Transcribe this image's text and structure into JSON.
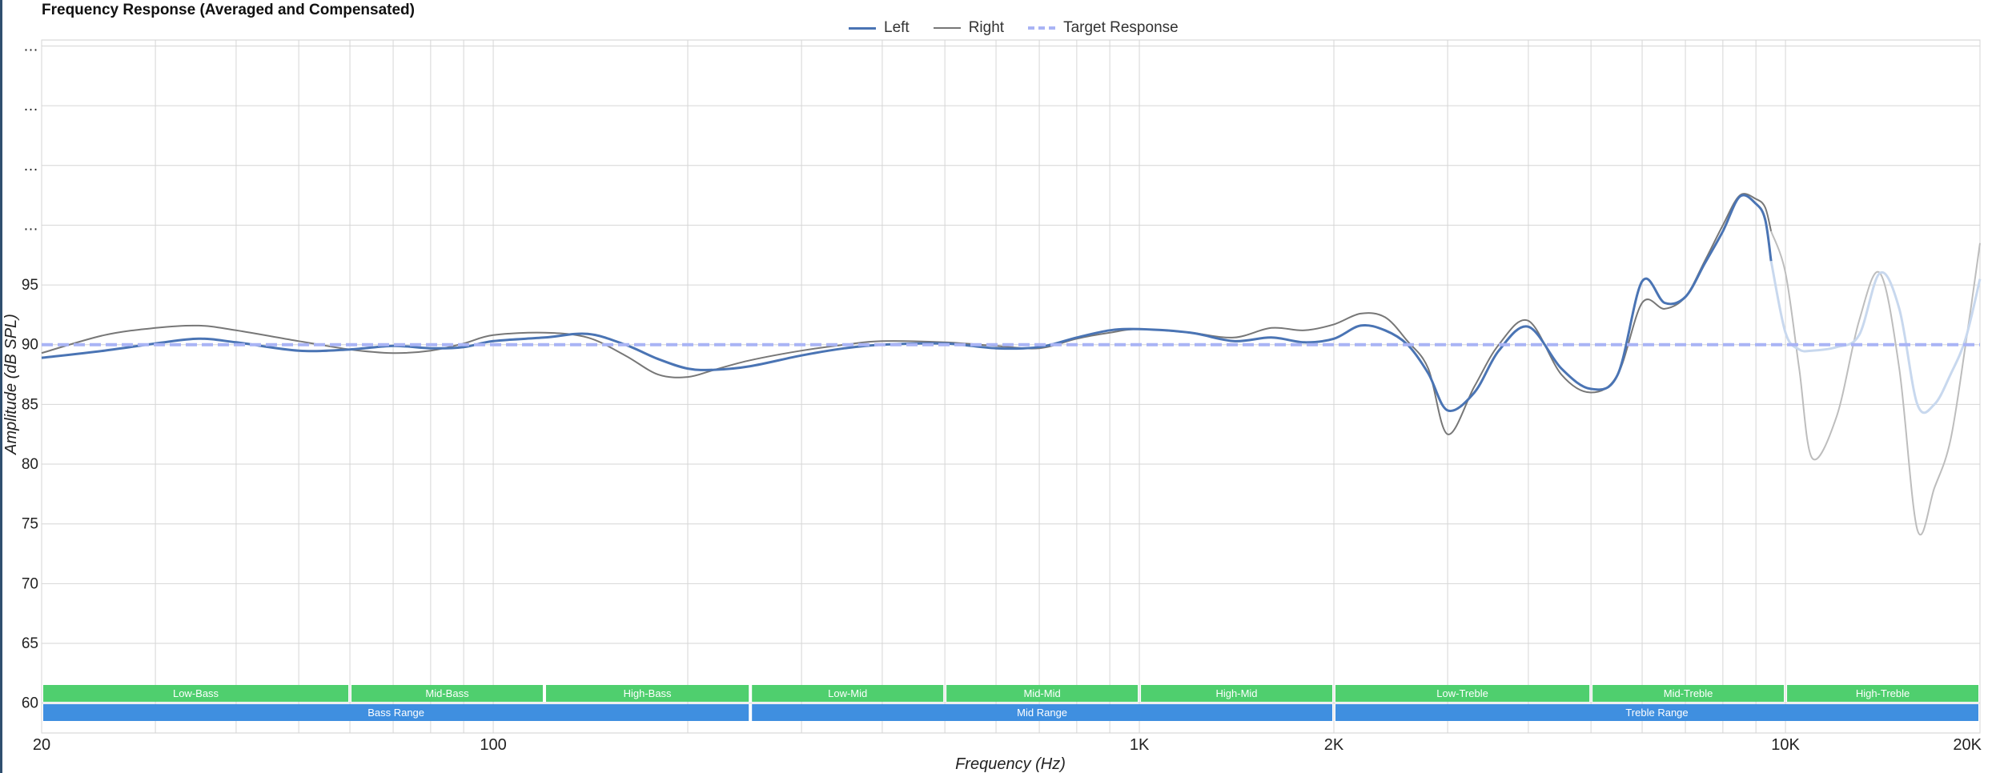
{
  "chart_data": {
    "type": "line",
    "title": "Frequency Response (Averaged and Compensated)",
    "xlabel": "Frequency (Hz)",
    "ylabel": "Amplitude (dB SPL)",
    "x_scale": "log",
    "xlim": [
      20,
      20000
    ],
    "ylim": [
      57.5,
      115.5
    ],
    "x_ticks": [
      {
        "value": 20,
        "label": "20"
      },
      {
        "value": 100,
        "label": "100"
      },
      {
        "value": 1000,
        "label": "1K"
      },
      {
        "value": 2000,
        "label": "2K"
      },
      {
        "value": 10000,
        "label": "10K"
      },
      {
        "value": 20000,
        "label": "20K"
      }
    ],
    "y_ticks": [
      {
        "value": 60,
        "label": "60"
      },
      {
        "value": 65,
        "label": "65"
      },
      {
        "value": 70,
        "label": "70"
      },
      {
        "value": 75,
        "label": "75"
      },
      {
        "value": 80,
        "label": "80"
      },
      {
        "value": 85,
        "label": "85"
      },
      {
        "value": 90,
        "label": "90"
      },
      {
        "value": 95,
        "label": "95"
      },
      {
        "value": 100,
        "label": "…"
      },
      {
        "value": 105,
        "label": "…"
      },
      {
        "value": 110,
        "label": "…"
      },
      {
        "value": 115,
        "label": "…"
      }
    ],
    "grid": true,
    "legend": {
      "position": "top-center",
      "items": [
        "Left",
        "Right",
        "Target Response"
      ]
    },
    "series": [
      {
        "name": "Left",
        "color": "#4a74b4",
        "style": "solid",
        "faded_after": 9500,
        "faded_color": "#c8d8ee",
        "x": [
          20,
          25,
          30,
          35,
          40,
          50,
          60,
          70,
          80,
          90,
          100,
          120,
          140,
          160,
          180,
          200,
          220,
          250,
          300,
          350,
          400,
          500,
          600,
          700,
          800,
          900,
          1000,
          1200,
          1400,
          1600,
          1800,
          2000,
          2200,
          2400,
          2600,
          2800,
          3000,
          3300,
          3600,
          4000,
          4500,
          5000,
          5500,
          6000,
          6500,
          7000,
          7500,
          8000,
          8500,
          9000,
          9300,
          9500,
          10000,
          10500,
          11000,
          12000,
          13000,
          14000,
          15000,
          16000,
          17000,
          18000,
          19000,
          20000
        ],
        "y": [
          88.9,
          89.5,
          90.1,
          90.5,
          90.2,
          89.5,
          89.6,
          89.9,
          89.7,
          89.8,
          90.3,
          90.6,
          90.9,
          90.0,
          88.8,
          88.0,
          87.9,
          88.2,
          89.1,
          89.7,
          90.0,
          90.1,
          89.7,
          89.8,
          90.6,
          91.2,
          91.3,
          91.0,
          90.3,
          90.6,
          90.2,
          90.5,
          91.6,
          91.2,
          90.0,
          87.6,
          84.5,
          86.0,
          89.5,
          91.5,
          88.0,
          86.3,
          87.5,
          95.3,
          93.5,
          94.0,
          96.8,
          99.5,
          102.4,
          101.8,
          100.5,
          97.0,
          91.0,
          89.6,
          89.5,
          89.8,
          90.8,
          96.0,
          93.0,
          85.0,
          85.0,
          87.5,
          90.5,
          95.5
        ]
      },
      {
        "name": "Right",
        "color": "#777777",
        "style": "solid",
        "faded_after": 9500,
        "faded_color": "#bdbdbd",
        "x": [
          20,
          25,
          30,
          35,
          40,
          50,
          60,
          70,
          80,
          90,
          100,
          120,
          140,
          160,
          180,
          200,
          220,
          250,
          300,
          350,
          400,
          500,
          600,
          700,
          800,
          900,
          1000,
          1200,
          1400,
          1600,
          1800,
          2000,
          2200,
          2400,
          2600,
          2800,
          3000,
          3300,
          3600,
          4000,
          4500,
          5000,
          5500,
          6000,
          6500,
          7000,
          7500,
          8000,
          8500,
          9000,
          9300,
          9500,
          10000,
          10500,
          11000,
          12000,
          13000,
          14000,
          15000,
          16000,
          17000,
          18000,
          19000,
          20000
        ],
        "y": [
          89.3,
          90.8,
          91.4,
          91.6,
          91.2,
          90.3,
          89.6,
          89.3,
          89.5,
          90.1,
          90.8,
          91.0,
          90.6,
          89.1,
          87.5,
          87.3,
          87.9,
          88.7,
          89.5,
          90.0,
          90.3,
          90.2,
          89.9,
          89.7,
          90.5,
          91.0,
          91.3,
          91.0,
          90.6,
          91.4,
          91.2,
          91.7,
          92.6,
          92.3,
          90.3,
          88.0,
          82.5,
          86.5,
          90.0,
          92.0,
          87.5,
          86.0,
          87.5,
          93.5,
          93.0,
          94.0,
          97.0,
          100.0,
          102.5,
          102.2,
          101.5,
          99.5,
          96.0,
          88.0,
          80.5,
          84.0,
          92.0,
          96.0,
          88.0,
          74.5,
          78.0,
          82.0,
          90.0,
          98.5
        ]
      },
      {
        "name": "Target Response",
        "color": "#a9b4f5",
        "style": "dashed",
        "x": [
          20,
          20000
        ],
        "y": [
          90,
          90
        ]
      }
    ],
    "bands": [
      {
        "label": "Low-Bass",
        "from": 20,
        "to": 60,
        "row": 1
      },
      {
        "label": "Mid-Bass",
        "from": 60,
        "to": 120,
        "row": 1
      },
      {
        "label": "High-Bass",
        "from": 120,
        "to": 250,
        "row": 1
      },
      {
        "label": "Low-Mid",
        "from": 250,
        "to": 500,
        "row": 1
      },
      {
        "label": "Mid-Mid",
        "from": 500,
        "to": 1000,
        "row": 1
      },
      {
        "label": "High-Mid",
        "from": 1000,
        "to": 2000,
        "row": 1
      },
      {
        "label": "Low-Treble",
        "from": 2000,
        "to": 5000,
        "row": 1
      },
      {
        "label": "Mid-Treble",
        "from": 5000,
        "to": 10000,
        "row": 1
      },
      {
        "label": "High-Treble",
        "from": 10000,
        "to": 20000,
        "row": 1
      },
      {
        "label": "Bass Range",
        "from": 20,
        "to": 250,
        "row": 2
      },
      {
        "label": "Mid Range",
        "from": 250,
        "to": 2000,
        "row": 2
      },
      {
        "label": "Treble Range",
        "from": 2000,
        "to": 20000,
        "row": 2
      }
    ],
    "band_colors": {
      "row1": "#4fcf6e",
      "row2": "#3f8fe0"
    }
  }
}
